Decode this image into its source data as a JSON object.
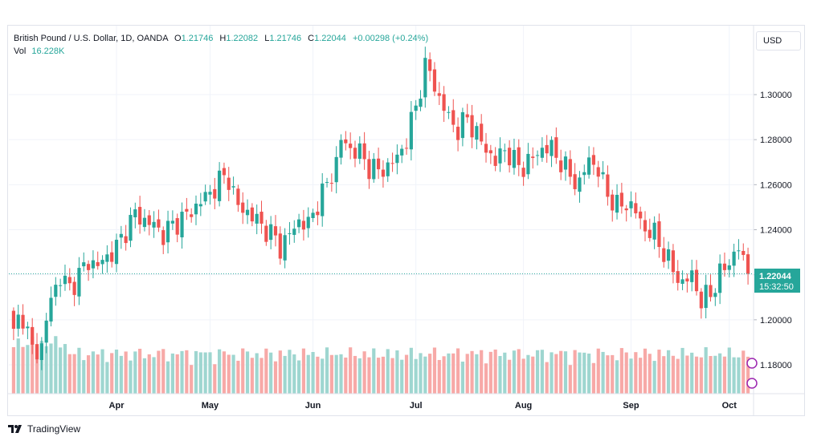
{
  "legend": {
    "title": "British Pound / U.S. Dollar, 1D, OANDA",
    "o_label": "O",
    "o_value": "1.21746",
    "h_label": "H",
    "h_value": "1.22082",
    "l_label": "L",
    "l_value": "1.21746",
    "c_label": "C",
    "c_value": "1.22044",
    "change": "+0.00298 (+0.24%)",
    "vol_label": "Vol",
    "vol_value": "16.228K"
  },
  "currency": "USD",
  "brand": "TradingView",
  "last_price": {
    "value": "1.22044",
    "countdown": "15:32:50"
  },
  "colors": {
    "up": "#26a69a",
    "down": "#ef5350",
    "vol_up": "#9ed6d0",
    "vol_down": "#f7a9a7",
    "grid": "#f0f3fa"
  },
  "chart_data": {
    "type": "candlestick",
    "symbol": "GBPUSD",
    "interval": "1D",
    "price_ticks": [
      1.18,
      1.2,
      1.22,
      1.24,
      1.26,
      1.28,
      1.3
    ],
    "price_tick_labels": [
      "1.18000",
      "1.20000",
      "1.22000",
      "1.24000",
      "1.26000",
      "1.28000",
      "1.30000"
    ],
    "ylim": [
      1.168,
      1.328
    ],
    "months": [
      "Apr",
      "May",
      "Jun",
      "Jul",
      "Aug",
      "Sep",
      "Oct"
    ],
    "month_first_index": [
      22,
      42,
      64,
      86,
      109,
      132,
      153
    ],
    "current_price": 1.22044,
    "close_anchors": [
      [
        0,
        1.198
      ],
      [
        2,
        1.202
      ],
      [
        4,
        1.186
      ],
      [
        6,
        1.188
      ],
      [
        8,
        1.21
      ],
      [
        10,
        1.219
      ],
      [
        12,
        1.214
      ],
      [
        14,
        1.22
      ],
      [
        16,
        1.226
      ],
      [
        18,
        1.224
      ],
      [
        20,
        1.228
      ],
      [
        22,
        1.232
      ],
      [
        24,
        1.24
      ],
      [
        26,
        1.247
      ],
      [
        28,
        1.244
      ],
      [
        30,
        1.242
      ],
      [
        32,
        1.238
      ],
      [
        34,
        1.242
      ],
      [
        36,
        1.245
      ],
      [
        38,
        1.248
      ],
      [
        40,
        1.253
      ],
      [
        42,
        1.256
      ],
      [
        44,
        1.262
      ],
      [
        46,
        1.263
      ],
      [
        48,
        1.25
      ],
      [
        50,
        1.248
      ],
      [
        52,
        1.244
      ],
      [
        54,
        1.24
      ],
      [
        56,
        1.236
      ],
      [
        57,
        1.232
      ],
      [
        59,
        1.238
      ],
      [
        61,
        1.244
      ],
      [
        63,
        1.242
      ],
      [
        65,
        1.252
      ],
      [
        67,
        1.26
      ],
      [
        69,
        1.27
      ],
      [
        70,
        1.28
      ],
      [
        72,
        1.276
      ],
      [
        74,
        1.274
      ],
      [
        76,
        1.268
      ],
      [
        78,
        1.266
      ],
      [
        80,
        1.268
      ],
      [
        82,
        1.272
      ],
      [
        84,
        1.28
      ],
      [
        86,
        1.295
      ],
      [
        88,
        1.312
      ],
      [
        89,
        1.31
      ],
      [
        91,
        1.298
      ],
      [
        93,
        1.29
      ],
      [
        95,
        1.284
      ],
      [
        97,
        1.29
      ],
      [
        99,
        1.282
      ],
      [
        101,
        1.276
      ],
      [
        103,
        1.27
      ],
      [
        105,
        1.276
      ],
      [
        107,
        1.27
      ],
      [
        109,
        1.268
      ],
      [
        111,
        1.272
      ],
      [
        113,
        1.276
      ],
      [
        115,
        1.276
      ],
      [
        117,
        1.27
      ],
      [
        119,
        1.264
      ],
      [
        121,
        1.26
      ],
      [
        123,
        1.272
      ],
      [
        125,
        1.266
      ],
      [
        127,
        1.256
      ],
      [
        129,
        1.25
      ],
      [
        131,
        1.252
      ],
      [
        133,
        1.248
      ],
      [
        135,
        1.24
      ],
      [
        137,
        1.238
      ],
      [
        139,
        1.23
      ],
      [
        141,
        1.222
      ],
      [
        143,
        1.216
      ],
      [
        145,
        1.22
      ],
      [
        147,
        1.208
      ],
      [
        149,
        1.212
      ],
      [
        151,
        1.22
      ],
      [
        153,
        1.226
      ],
      [
        155,
        1.232
      ],
      [
        157,
        1.22
      ]
    ]
  }
}
